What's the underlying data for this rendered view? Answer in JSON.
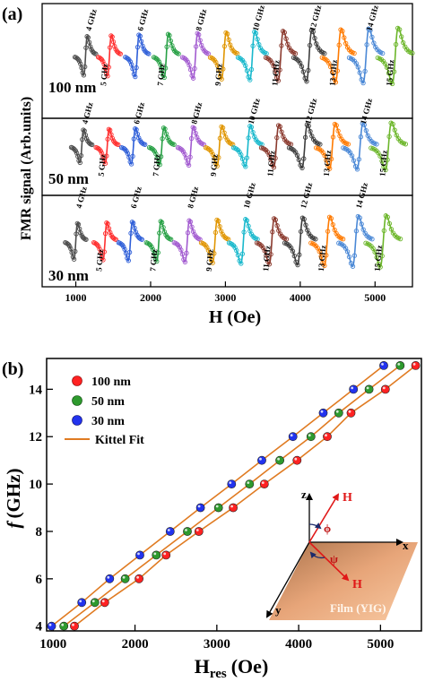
{
  "chart_data": [
    {
      "panel_label": "(a)",
      "type": "line",
      "ylabel": "FMR signal (Arb.units)",
      "xlabel": "H (Oe)",
      "xlim": [
        550,
        5500
      ],
      "xticks": [
        "1000",
        "2000",
        "3000",
        "4000",
        "5000"
      ],
      "freq_labels": [
        "4 GHz",
        "5 GHz",
        "6 GHz",
        "7 GHz",
        "8 GHz",
        "9 GHz",
        "10 GHz",
        "11 GHz",
        "12 GHz",
        "13 GHz",
        "14 GHz",
        "15 GHz"
      ],
      "colors": [
        "#4d4d4d",
        "#ff3030",
        "#2f5fd8",
        "#27a045",
        "#a25bd0",
        "#e09500",
        "#18b8cc",
        "#8b3a2e",
        "#3e3e3e",
        "#ff7a00",
        "#4a88d6",
        "#6cb62a"
      ],
      "subpanels": [
        {
          "label": "100 nm",
          "H_res": [
            1130,
            1450,
            1820,
            2210,
            2600,
            2980,
            3360,
            3740,
            4120,
            4510,
            4880,
            5270
          ]
        },
        {
          "label": "50 nm",
          "H_res": [
            1080,
            1420,
            1770,
            2150,
            2540,
            2920,
            3300,
            3680,
            4060,
            4430,
            4800,
            5180
          ]
        },
        {
          "label": "30 nm",
          "H_res": [
            1000,
            1390,
            1730,
            2110,
            2490,
            2860,
            3240,
            3620,
            4000,
            4360,
            4740,
            5110
          ]
        }
      ]
    },
    {
      "panel_label": "(b)",
      "type": "scatter",
      "xlabel_main": "H",
      "xlabel_sub": "res",
      "xlabel_unit": "(Oe)",
      "ylabel_italic": "f",
      "ylabel_unit": "(GHz)",
      "xlim": [
        920,
        5500
      ],
      "ylim": [
        3.8,
        15.3
      ],
      "xticks": [
        1000,
        2000,
        3000,
        4000,
        5000
      ],
      "yticks": [
        4,
        6,
        8,
        10,
        12,
        14
      ],
      "y": [
        4,
        5,
        6,
        7,
        8,
        9,
        10,
        11,
        12,
        13,
        14,
        15
      ],
      "series": [
        {
          "name": "100 nm",
          "color": "#ff2222",
          "x": [
            1260,
            1630,
            2050,
            2380,
            2780,
            3200,
            3580,
            3980,
            4350,
            4640,
            5060,
            5430
          ]
        },
        {
          "name": "50 nm",
          "color": "#2e9a2e",
          "x": [
            1130,
            1510,
            1880,
            2260,
            2640,
            3020,
            3400,
            3770,
            4150,
            4490,
            4860,
            5240
          ]
        },
        {
          "name": "30 nm",
          "color": "#2233ee",
          "x": [
            980,
            1350,
            1690,
            2060,
            2430,
            2800,
            3180,
            3550,
            3930,
            4300,
            4670,
            5040
          ]
        }
      ],
      "fit_name": "Kittel Fit",
      "fit_color": "#e07b22",
      "inset": {
        "z": "z",
        "H1": "H",
        "H2": "H",
        "phi": "ϕ",
        "psi": "ψ",
        "x": "x",
        "y": "y",
        "film": "Film (YIG)"
      }
    }
  ]
}
